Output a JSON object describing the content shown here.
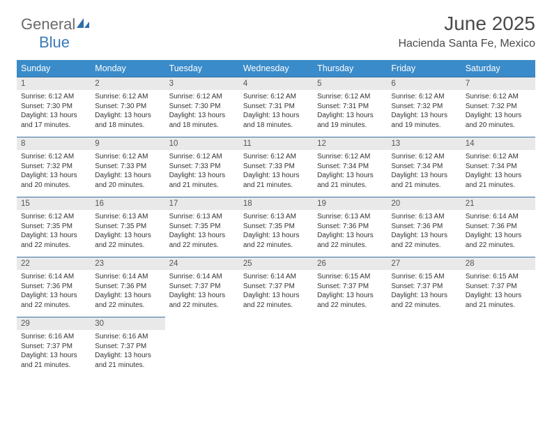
{
  "logo": {
    "text_general": "General",
    "text_blue": "Blue"
  },
  "header": {
    "title": "June 2025",
    "subtitle": "Hacienda Santa Fe, Mexico"
  },
  "colors": {
    "header_row_bg": "#3a8bc9",
    "header_row_text": "#ffffff",
    "daynum_bg": "#e9e9e9",
    "daynum_border_top": "#3a6fa5",
    "body_bg": "#ffffff",
    "text": "#333333",
    "title_text": "#4a4a4a",
    "logo_gray": "#6a6a6a",
    "logo_blue": "#3a7ab8"
  },
  "fonts": {
    "title_size_pt": 21,
    "subtitle_size_pt": 12,
    "header_size_pt": 9,
    "body_size_pt": 7.5
  },
  "weekdays": [
    "Sunday",
    "Monday",
    "Tuesday",
    "Wednesday",
    "Thursday",
    "Friday",
    "Saturday"
  ],
  "weeks": [
    [
      {
        "n": "1",
        "sr": "6:12 AM",
        "ss": "7:30 PM",
        "dl": "13 hours and 17 minutes."
      },
      {
        "n": "2",
        "sr": "6:12 AM",
        "ss": "7:30 PM",
        "dl": "13 hours and 18 minutes."
      },
      {
        "n": "3",
        "sr": "6:12 AM",
        "ss": "7:30 PM",
        "dl": "13 hours and 18 minutes."
      },
      {
        "n": "4",
        "sr": "6:12 AM",
        "ss": "7:31 PM",
        "dl": "13 hours and 18 minutes."
      },
      {
        "n": "5",
        "sr": "6:12 AM",
        "ss": "7:31 PM",
        "dl": "13 hours and 19 minutes."
      },
      {
        "n": "6",
        "sr": "6:12 AM",
        "ss": "7:32 PM",
        "dl": "13 hours and 19 minutes."
      },
      {
        "n": "7",
        "sr": "6:12 AM",
        "ss": "7:32 PM",
        "dl": "13 hours and 20 minutes."
      }
    ],
    [
      {
        "n": "8",
        "sr": "6:12 AM",
        "ss": "7:32 PM",
        "dl": "13 hours and 20 minutes."
      },
      {
        "n": "9",
        "sr": "6:12 AM",
        "ss": "7:33 PM",
        "dl": "13 hours and 20 minutes."
      },
      {
        "n": "10",
        "sr": "6:12 AM",
        "ss": "7:33 PM",
        "dl": "13 hours and 21 minutes."
      },
      {
        "n": "11",
        "sr": "6:12 AM",
        "ss": "7:33 PM",
        "dl": "13 hours and 21 minutes."
      },
      {
        "n": "12",
        "sr": "6:12 AM",
        "ss": "7:34 PM",
        "dl": "13 hours and 21 minutes."
      },
      {
        "n": "13",
        "sr": "6:12 AM",
        "ss": "7:34 PM",
        "dl": "13 hours and 21 minutes."
      },
      {
        "n": "14",
        "sr": "6:12 AM",
        "ss": "7:34 PM",
        "dl": "13 hours and 21 minutes."
      }
    ],
    [
      {
        "n": "15",
        "sr": "6:12 AM",
        "ss": "7:35 PM",
        "dl": "13 hours and 22 minutes."
      },
      {
        "n": "16",
        "sr": "6:13 AM",
        "ss": "7:35 PM",
        "dl": "13 hours and 22 minutes."
      },
      {
        "n": "17",
        "sr": "6:13 AM",
        "ss": "7:35 PM",
        "dl": "13 hours and 22 minutes."
      },
      {
        "n": "18",
        "sr": "6:13 AM",
        "ss": "7:35 PM",
        "dl": "13 hours and 22 minutes."
      },
      {
        "n": "19",
        "sr": "6:13 AM",
        "ss": "7:36 PM",
        "dl": "13 hours and 22 minutes."
      },
      {
        "n": "20",
        "sr": "6:13 AM",
        "ss": "7:36 PM",
        "dl": "13 hours and 22 minutes."
      },
      {
        "n": "21",
        "sr": "6:14 AM",
        "ss": "7:36 PM",
        "dl": "13 hours and 22 minutes."
      }
    ],
    [
      {
        "n": "22",
        "sr": "6:14 AM",
        "ss": "7:36 PM",
        "dl": "13 hours and 22 minutes."
      },
      {
        "n": "23",
        "sr": "6:14 AM",
        "ss": "7:36 PM",
        "dl": "13 hours and 22 minutes."
      },
      {
        "n": "24",
        "sr": "6:14 AM",
        "ss": "7:37 PM",
        "dl": "13 hours and 22 minutes."
      },
      {
        "n": "25",
        "sr": "6:14 AM",
        "ss": "7:37 PM",
        "dl": "13 hours and 22 minutes."
      },
      {
        "n": "26",
        "sr": "6:15 AM",
        "ss": "7:37 PM",
        "dl": "13 hours and 22 minutes."
      },
      {
        "n": "27",
        "sr": "6:15 AM",
        "ss": "7:37 PM",
        "dl": "13 hours and 22 minutes."
      },
      {
        "n": "28",
        "sr": "6:15 AM",
        "ss": "7:37 PM",
        "dl": "13 hours and 21 minutes."
      }
    ],
    [
      {
        "n": "29",
        "sr": "6:16 AM",
        "ss": "7:37 PM",
        "dl": "13 hours and 21 minutes."
      },
      {
        "n": "30",
        "sr": "6:16 AM",
        "ss": "7:37 PM",
        "dl": "13 hours and 21 minutes."
      },
      null,
      null,
      null,
      null,
      null
    ]
  ],
  "labels": {
    "sunrise": "Sunrise:",
    "sunset": "Sunset:",
    "daylight": "Daylight:"
  }
}
